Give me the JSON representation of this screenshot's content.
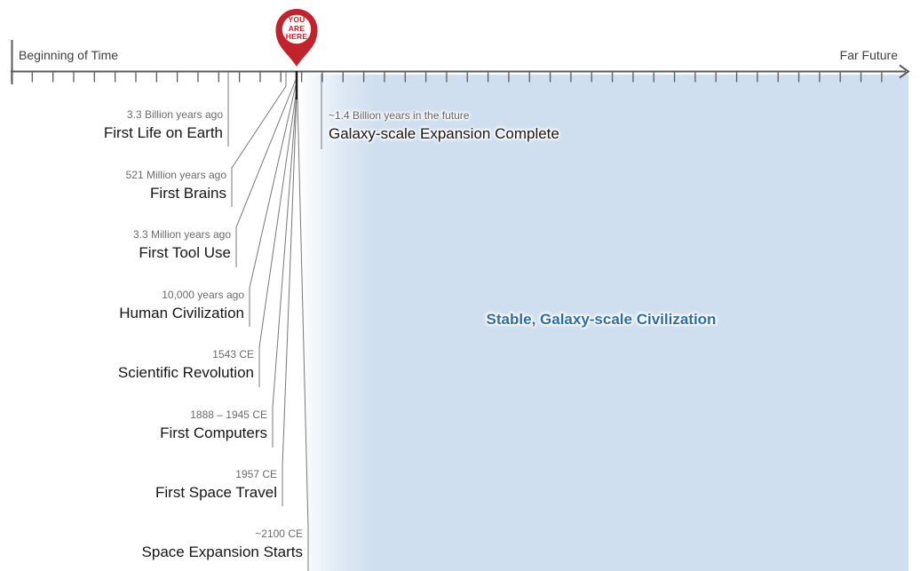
{
  "axis": {
    "left_label": "Beginning of Time",
    "right_label": "Far Future"
  },
  "pin": {
    "line1": "YOU",
    "line2": "ARE",
    "line3": "HERE"
  },
  "events": [
    {
      "date": "3.3 Billion years ago",
      "label": "First Life on Earth"
    },
    {
      "date": "521 Million years ago",
      "label": "First Brains"
    },
    {
      "date": "3.3 Million years ago",
      "label": "First Tool Use"
    },
    {
      "date": "10,000 years ago",
      "label": "Human Civilization"
    },
    {
      "date": "1543 CE",
      "label": "Scientific Revolution"
    },
    {
      "date": "1888 – 1945 CE",
      "label": "First Computers"
    },
    {
      "date": "1957 CE",
      "label": "First Space Travel"
    },
    {
      "date": "~2100 CE",
      "label": "Space Expansion Starts"
    }
  ],
  "future_event": {
    "date": "~1.4 Billion years in the future",
    "label": "Galaxy-scale Expansion Complete"
  },
  "region_label": "Stable, Galaxy-scale Civilization",
  "colors": {
    "pin_red": "#c2222b",
    "region_blue": "#d0dfef",
    "region_text_blue": "#2d6da4",
    "axis_gray": "#555555",
    "connector_gray": "#777777"
  },
  "chart_data": {
    "type": "timeline",
    "title": "",
    "axis_start_label": "Beginning of Time",
    "axis_end_label": "Far Future",
    "present_marker": "YOU ARE HERE",
    "past_events": [
      {
        "time": "3.3 Billion years ago",
        "event": "First Life on Earth"
      },
      {
        "time": "521 Million years ago",
        "event": "First Brains"
      },
      {
        "time": "3.3 Million years ago",
        "event": "First Tool Use"
      },
      {
        "time": "10,000 years ago",
        "event": "Human Civilization"
      },
      {
        "time": "1543 CE",
        "event": "Scientific Revolution"
      },
      {
        "time": "1888 – 1945 CE",
        "event": "First Computers"
      },
      {
        "time": "1957 CE",
        "event": "First Space Travel"
      },
      {
        "time": "~2100 CE",
        "event": "Space Expansion Starts"
      }
    ],
    "future_events": [
      {
        "time": "~1.4 Billion years in the future",
        "event": "Galaxy-scale Expansion Complete"
      }
    ],
    "future_region": "Stable, Galaxy-scale Civilization"
  }
}
